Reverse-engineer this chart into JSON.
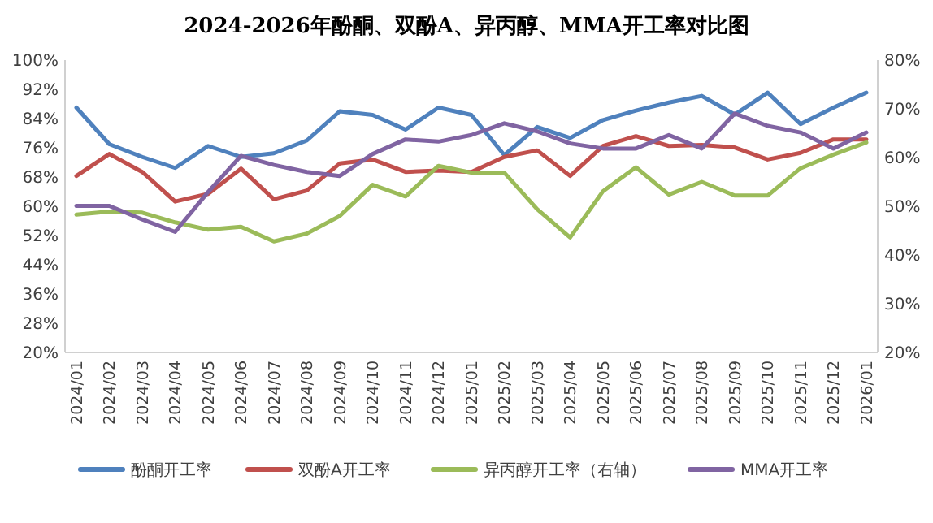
{
  "chart_data": {
    "type": "line",
    "title": "2024-2026年酚酮、双酚A、异丙醇、MMA开工率对比图",
    "categories": [
      "2024/01",
      "2024/02",
      "2024/03",
      "2024/04",
      "2024/05",
      "2024/06",
      "2024/07",
      "2024/08",
      "2024/09",
      "2024/10",
      "2024/11",
      "2024/12",
      "2025/01",
      "2025/02",
      "2025/03",
      "2025/04",
      "2025/05",
      "2025/06",
      "2025/07",
      "2025/08",
      "2025/09",
      "2025/10",
      "2025/11",
      "2025/12",
      "2026/01"
    ],
    "series": [
      {
        "name": "酚酮开工率",
        "color": "#4f81bd",
        "values": [
          87,
          77,
          73.5,
          70.5,
          76.5,
          73.5,
          74.5,
          78,
          86,
          85,
          81,
          87,
          85,
          74,
          81.7,
          78.7,
          83.6,
          86.2,
          88.4,
          90.2,
          85.1,
          91.1,
          82.5,
          87,
          91.1
        ]
      },
      {
        "name": "双酚A开工率",
        "color": "#c0504d",
        "values": [
          68.3,
          74.3,
          69.4,
          61.3,
          63.4,
          70.3,
          61.9,
          64.3,
          71.7,
          72.8,
          69.4,
          69.8,
          69.4,
          73.5,
          75.3,
          68.3,
          76.5,
          79.2,
          76.5,
          76.8,
          76.1,
          72.8,
          74.6,
          78.3,
          78.3
        ]
      },
      {
        "name": "异丙醇开工率（右轴）",
        "color": "#9bbb59",
        "axis": "y2",
        "values": [
          48.3,
          48.9,
          48.7,
          46.7,
          45.2,
          45.8,
          42.8,
          44.4,
          48,
          54.4,
          52,
          58.3,
          56.9,
          56.9,
          49.4,
          43.6,
          53.1,
          58,
          52.4,
          55,
          52.2,
          52.2,
          57.8,
          60.6,
          63.1
        ]
      },
      {
        "name": "MMA开工率",
        "color": "#8064a2",
        "values": [
          60.1,
          60.1,
          56.4,
          53,
          63.9,
          73.8,
          71.3,
          69.4,
          68.3,
          74.3,
          78.3,
          77.7,
          79.5,
          82.7,
          80.5,
          77.2,
          75.8,
          75.8,
          79.5,
          75.8,
          85.4,
          82,
          80.2,
          75.8,
          80.2
        ]
      }
    ],
    "ylim": [
      20,
      100
    ],
    "yticks": [
      {
        "value": 20,
        "label": "20%"
      },
      {
        "value": 28,
        "label": "28%"
      },
      {
        "value": 36,
        "label": "36%"
      },
      {
        "value": 44,
        "label": "44%"
      },
      {
        "value": 52,
        "label": "52%"
      },
      {
        "value": 60,
        "label": "60%"
      },
      {
        "value": 68,
        "label": "68%"
      },
      {
        "value": 76,
        "label": "76%"
      },
      {
        "value": 84,
        "label": "84%"
      },
      {
        "value": 92,
        "label": "92%"
      },
      {
        "value": 100,
        "label": "100%"
      }
    ],
    "y2lim": [
      20,
      80
    ],
    "y2ticks": [
      {
        "value": 20,
        "label": "20%"
      },
      {
        "value": 30,
        "label": "30%"
      },
      {
        "value": 40,
        "label": "40%"
      },
      {
        "value": 50,
        "label": "50%"
      },
      {
        "value": 60,
        "label": "60%"
      },
      {
        "value": 70,
        "label": "70%"
      },
      {
        "value": 80,
        "label": "80%"
      }
    ],
    "grid": false,
    "legend": "bottom",
    "marker": "none",
    "line_style": "solid"
  }
}
